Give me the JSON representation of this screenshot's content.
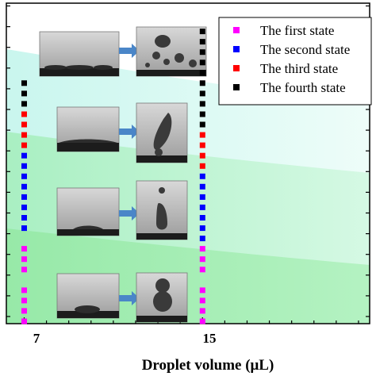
{
  "chart_data": {
    "type": "scatter",
    "xlabel": "Droplet volume (μL)",
    "ylabel": "",
    "title": "",
    "xticks": [
      7,
      15
    ],
    "xlim": [
      6.2,
      22.5
    ],
    "legend_position": "top-right",
    "grid": false,
    "series": [
      {
        "name": "The first state",
        "color": "#ff00ff",
        "x": [
          7,
          7,
          7,
          7,
          7,
          7,
          7,
          15,
          15,
          15,
          15,
          15,
          15,
          15
        ],
        "level": [
          1,
          2,
          3,
          4,
          6,
          7,
          8,
          1,
          2,
          3,
          4,
          6,
          7,
          8
        ]
      },
      {
        "name": "The second state",
        "color": "#0000ff",
        "x": [
          7,
          7,
          7,
          7,
          7,
          7,
          7,
          7,
          15,
          15,
          15,
          15,
          15,
          15,
          15
        ],
        "level": [
          10,
          11,
          12,
          13,
          14,
          15,
          16,
          17,
          9,
          10,
          11,
          12,
          13,
          14,
          15
        ]
      },
      {
        "name": "The third state",
        "color": "#ff0000",
        "x": [
          7,
          7,
          7,
          7,
          15,
          15,
          15,
          15
        ],
        "level": [
          18,
          19,
          20,
          21,
          16,
          17,
          18,
          19
        ]
      },
      {
        "name": "The fourth state",
        "color": "#000000",
        "x": [
          7,
          7,
          7,
          15,
          15,
          15,
          15,
          15,
          15,
          15,
          15,
          15,
          15
        ],
        "level": [
          22,
          23,
          24,
          20,
          21,
          22,
          23,
          24,
          25,
          26,
          27,
          28,
          29
        ]
      }
    ]
  },
  "colors": {
    "band_light": "#dafdf3",
    "band_mid": "#c6f8d9",
    "band_dark": "#a8f0b8",
    "arrow": "#4a86c8"
  }
}
